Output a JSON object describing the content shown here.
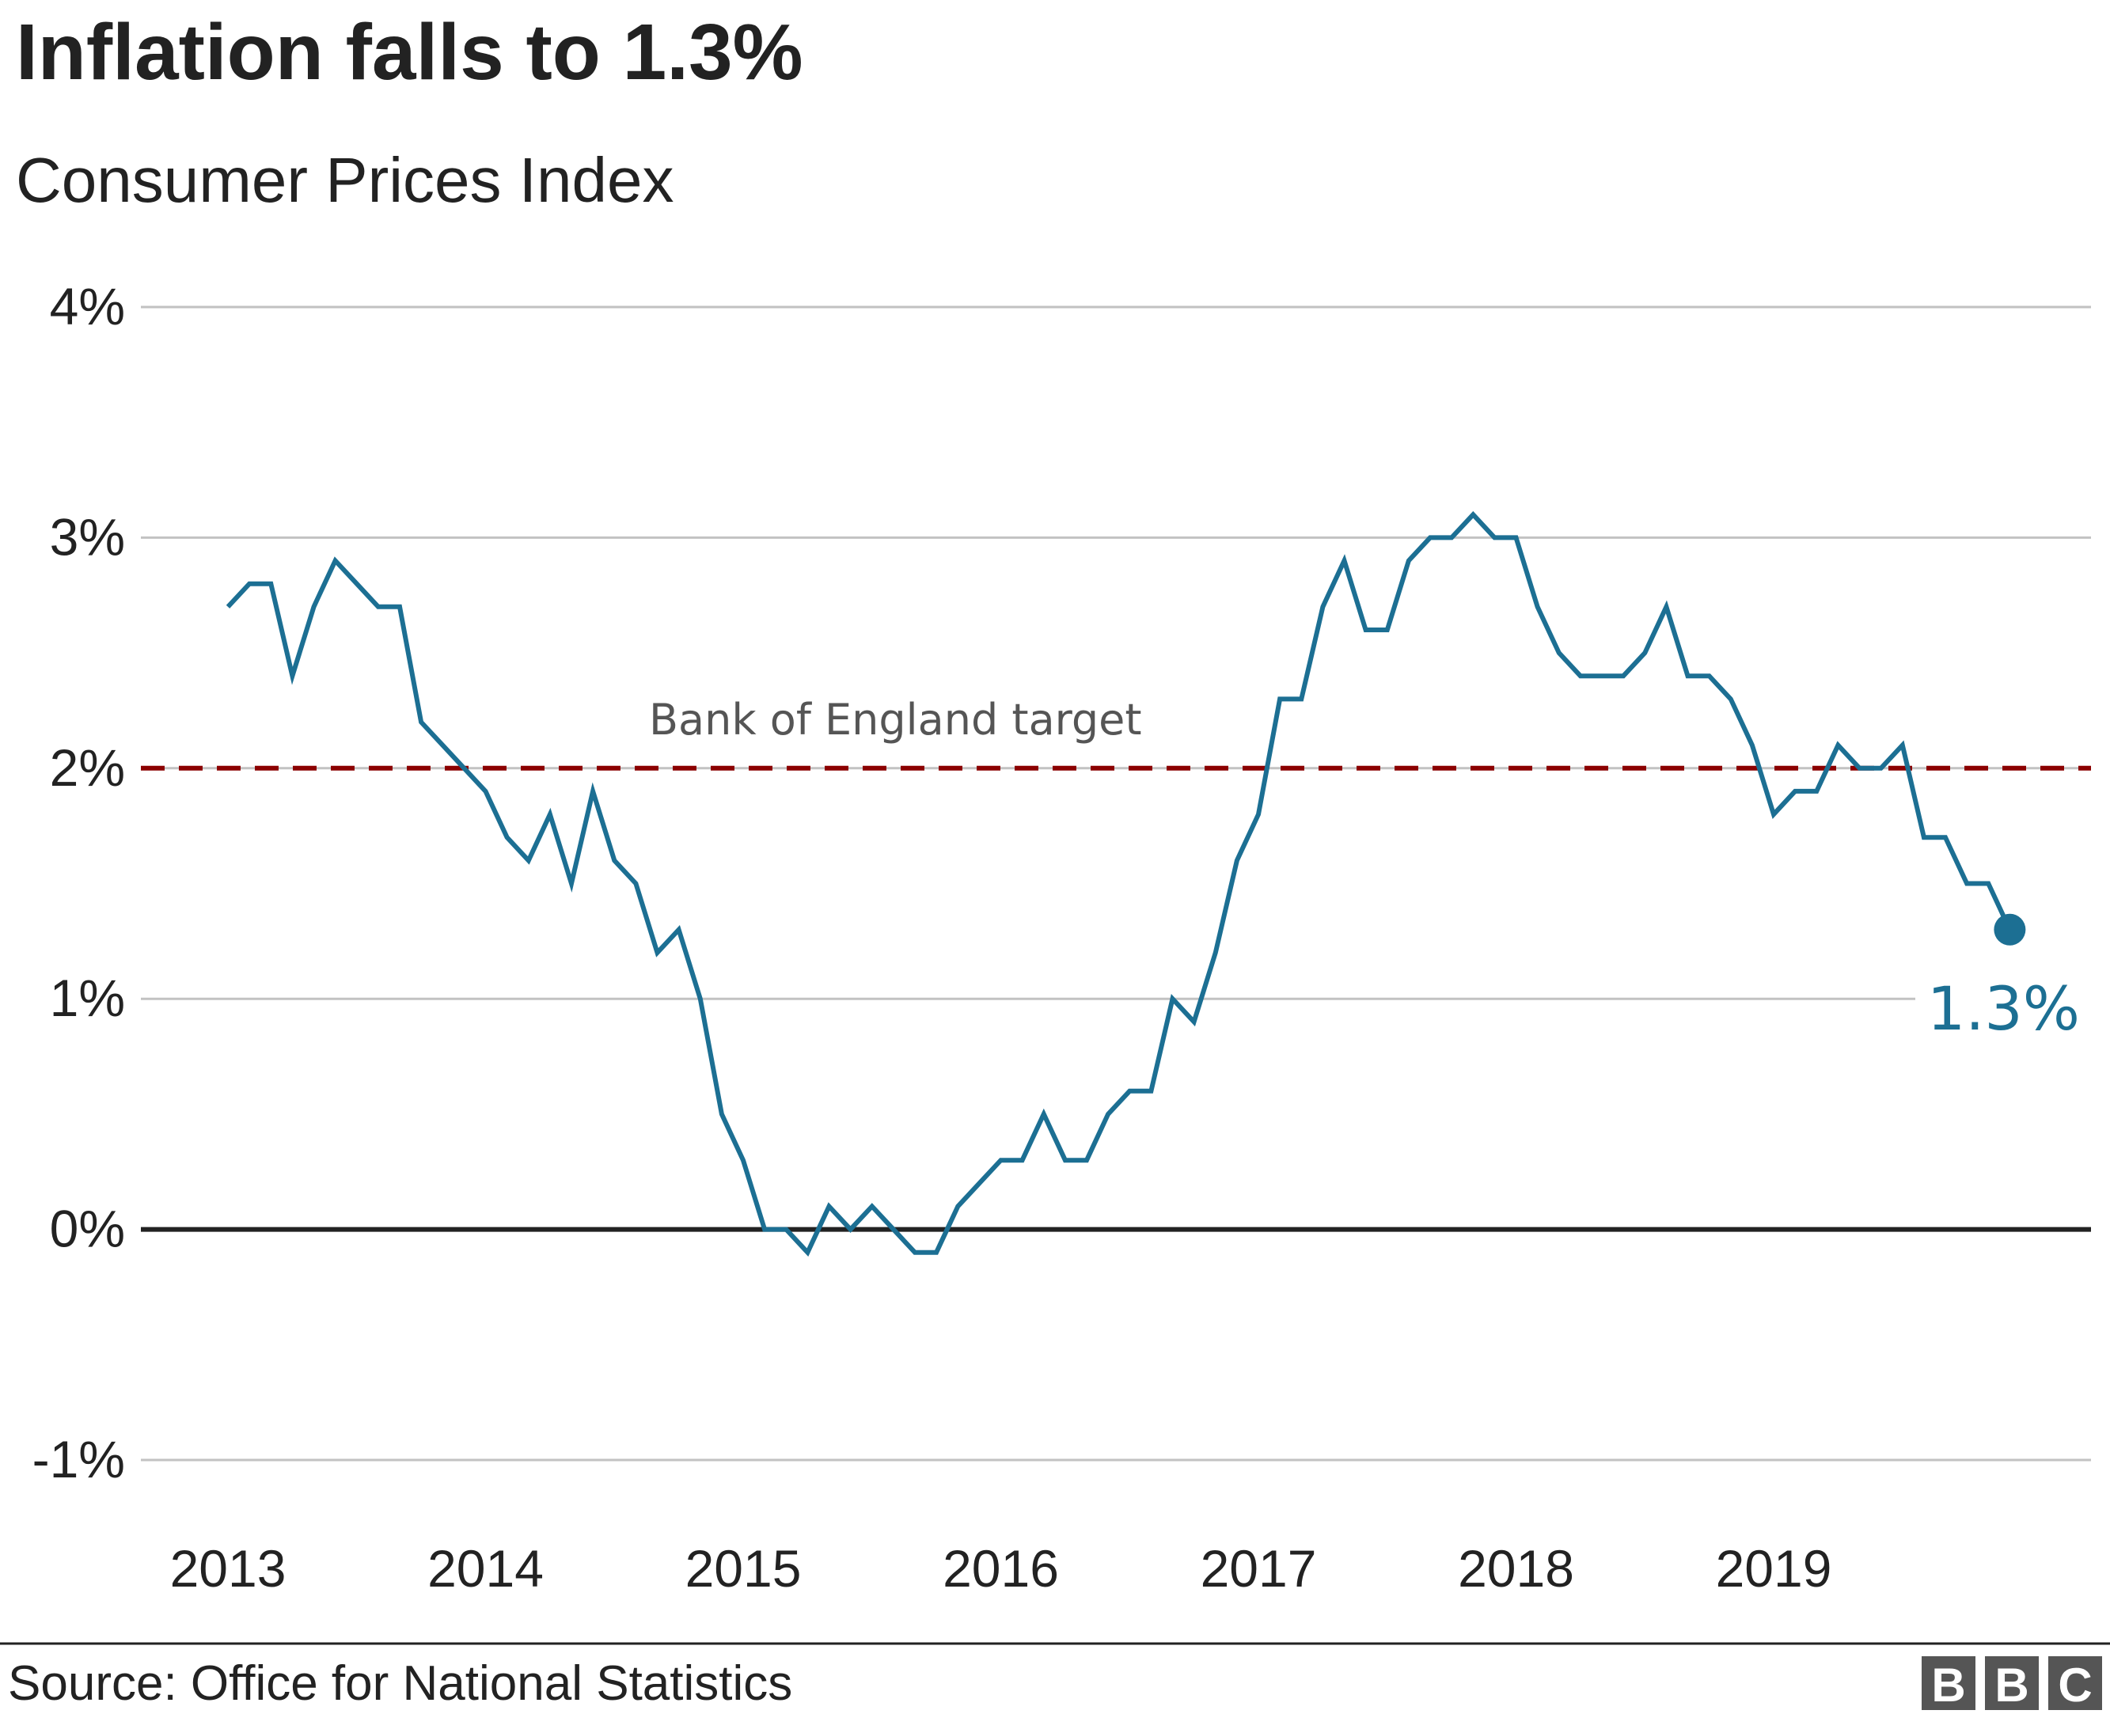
{
  "title": "Inflation falls to 1.3%",
  "subtitle": "Consumer Prices Index",
  "source": "Source: Office for National Statistics",
  "logo": [
    "B",
    "B",
    "C"
  ],
  "colors": {
    "line": "#1c6f93",
    "target": "#8b0000",
    "grid": "#c2c2c2",
    "zero": "#222222",
    "logo": "#555555"
  },
  "chart_data": {
    "type": "line",
    "title": "Inflation falls to 1.3%",
    "subtitle": "Consumer Prices Index",
    "ylabel": "",
    "xlabel": "",
    "ylim": [
      -1,
      4
    ],
    "y_ticks": [
      4,
      3,
      2,
      1,
      0,
      -1
    ],
    "y_tick_labels": [
      "4%",
      "3%",
      "2%",
      "1%",
      "0%",
      "-1%"
    ],
    "x_ticks": [
      "2013",
      "2014",
      "2015",
      "2016",
      "2017",
      "2018",
      "2019"
    ],
    "grid": true,
    "reference_line": {
      "value": 2,
      "label": "Bank of England target"
    },
    "end_label": "1.3%",
    "series": [
      {
        "start": "2013-01",
        "frequency": "monthly",
        "values": [
          2.7,
          2.8,
          2.8,
          2.4,
          2.7,
          2.9,
          2.8,
          2.7,
          2.7,
          2.2,
          2.1,
          2.0,
          1.9,
          1.7,
          1.6,
          1.8,
          1.5,
          1.9,
          1.6,
          1.5,
          1.2,
          1.3,
          1.0,
          0.5,
          0.3,
          0.0,
          0.0,
          -0.1,
          0.1,
          0.0,
          0.1,
          0.0,
          -0.1,
          -0.1,
          0.1,
          0.2,
          0.3,
          0.3,
          0.5,
          0.3,
          0.3,
          0.5,
          0.6,
          0.6,
          1.0,
          0.9,
          1.2,
          1.6,
          1.8,
          2.3,
          2.3,
          2.7,
          2.9,
          2.6,
          2.6,
          2.9,
          3.0,
          3.0,
          3.1,
          3.0,
          3.0,
          2.7,
          2.5,
          2.4,
          2.4,
          2.4,
          2.5,
          2.7,
          2.4,
          2.4,
          2.3,
          2.1,
          1.8,
          1.9,
          1.9,
          2.1,
          2.0,
          2.0,
          2.1,
          1.7,
          1.7,
          1.5,
          1.5,
          1.3
        ]
      }
    ]
  }
}
